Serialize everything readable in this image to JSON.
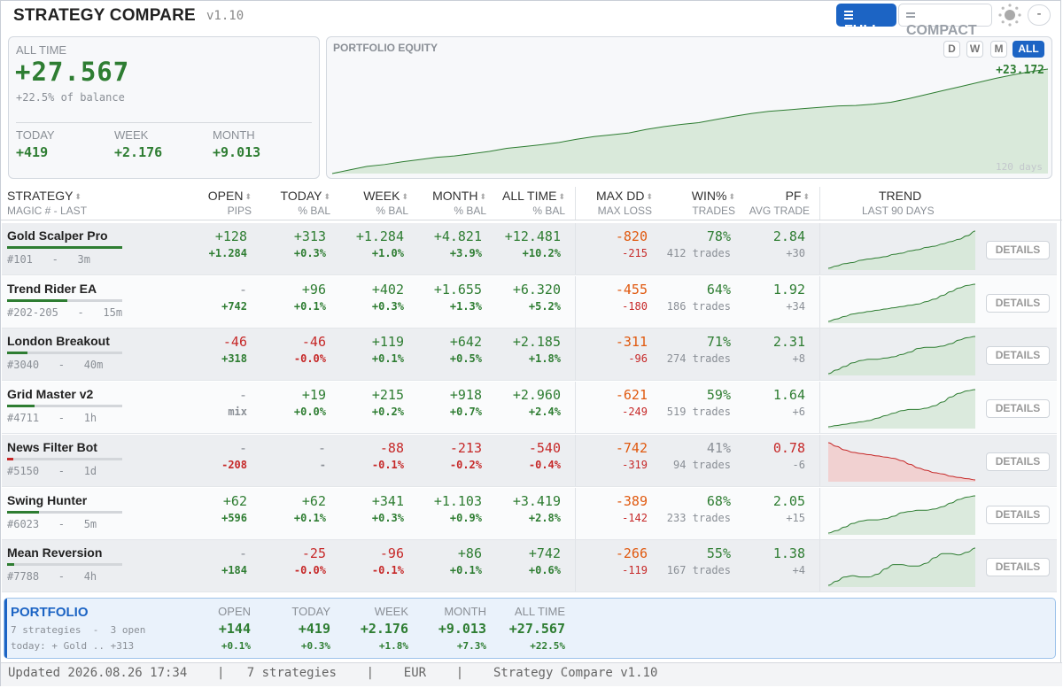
{
  "header": {
    "title": "STRATEGY COMPARE",
    "version": "v1.10",
    "view_full": "FULL",
    "view_compact": "COMPACT",
    "minimize": "-"
  },
  "summary": {
    "label": "ALL TIME",
    "value": "+27.567",
    "sub": "+22.5% of balance",
    "today_label": "TODAY",
    "today_value": "+419",
    "week_label": "WEEK",
    "week_value": "+2.176",
    "month_label": "MONTH",
    "month_value": "+9.013"
  },
  "equity": {
    "title": "PORTFOLIO EQUITY",
    "ranges": [
      "D",
      "W",
      "M",
      "ALL"
    ],
    "active_range": "ALL",
    "end_value": "+23.172",
    "period": "120 days",
    "points": [
      0,
      0.8,
      1.6,
      2.0,
      2.6,
      3.1,
      3.6,
      3.9,
      4.4,
      4.9,
      5.6,
      6.0,
      6.4,
      6.9,
      7.6,
      8.2,
      8.6,
      9.0,
      9.8,
      10.4,
      10.9,
      11.3,
      12.0,
      12.7,
      13.3,
      13.8,
      14.1,
      14.4,
      14.7,
      15.0,
      15.1,
      15.4,
      15.8,
      16.6,
      17.5,
      18.4,
      19.3,
      20.2,
      21.1,
      21.9,
      22.6,
      23.17
    ],
    "color": "#2e7d32"
  },
  "columns": {
    "strategy": "STRATEGY",
    "strategy_sub": "MAGIC # - LAST",
    "open": "OPEN",
    "open_sub": "PIPS",
    "today": "TODAY",
    "today_sub": "% BAL",
    "week": "WEEK",
    "week_sub": "% BAL",
    "month": "MONTH",
    "month_sub": "% BAL",
    "alltime": "ALL TIME",
    "alltime_sub": "% BAL",
    "maxdd": "MAX DD",
    "maxdd_sub": "MAX LOSS",
    "win": "WIN%",
    "win_sub": "TRADES",
    "pf": "PF",
    "pf_sub": "AVG TRADE",
    "trend": "TREND",
    "trend_sub": "LAST 90 DAYS"
  },
  "rows": [
    {
      "name": "Gold Scalper Pro",
      "magic": "#101   -   3m",
      "bar": 1.0,
      "open": "+128",
      "open2": "+1.284",
      "today": "+313",
      "today2": "+0.3%",
      "week": "+1.284",
      "week2": "+1.0%",
      "month": "+4.821",
      "month2": "+3.9%",
      "all": "+12.481",
      "all2": "+10.2%",
      "dd": "-820",
      "dd2": "-215",
      "win": "78%",
      "trades": "412 trades",
      "pf": "2.84",
      "avg": "+30",
      "trend": "up",
      "spark": [
        0,
        2,
        4,
        5,
        7,
        8,
        9,
        10,
        12,
        13,
        15,
        16,
        18,
        19,
        21,
        23,
        25,
        28,
        32
      ],
      "details": "DETAILS"
    },
    {
      "name": "Trend Rider EA",
      "magic": "#202-205   -   15m",
      "bar": 0.52,
      "open": "-",
      "open2": "+742",
      "today": "+96",
      "today2": "+0.1%",
      "week": "+402",
      "week2": "+0.3%",
      "month": "+1.655",
      "month2": "+1.3%",
      "all": "+6.320",
      "all2": "+5.2%",
      "dd": "-455",
      "dd2": "-180",
      "win": "64%",
      "trades": "186 trades",
      "pf": "1.92",
      "avg": "+34",
      "trend": "up",
      "spark": [
        0,
        2,
        4,
        6,
        7,
        8,
        9,
        10,
        11,
        12,
        13,
        14,
        16,
        18,
        21,
        24,
        27,
        29,
        30
      ],
      "details": "DETAILS"
    },
    {
      "name": "London Breakout",
      "magic": "#3040   -   40m",
      "bar": 0.18,
      "open": "-46",
      "open2": "+318",
      "today": "-46",
      "today2": "-0.0%",
      "week": "+119",
      "week2": "+0.1%",
      "month": "+642",
      "month2": "+0.5%",
      "all": "+2.185",
      "all2": "+1.8%",
      "dd": "-311",
      "dd2": "-96",
      "win": "71%",
      "trades": "274 trades",
      "pf": "2.31",
      "avg": "+8",
      "trend": "up",
      "spark": [
        0,
        3,
        6,
        9,
        11,
        12,
        12,
        13,
        14,
        16,
        18,
        21,
        22,
        22,
        23,
        25,
        28,
        30,
        31
      ],
      "details": "DETAILS"
    },
    {
      "name": "Grid Master v2",
      "magic": "#4711   -   1h",
      "bar": 0.24,
      "open": "-",
      "open2": "mix",
      "today": "+19",
      "today2": "+0.0%",
      "week": "+215",
      "week2": "+0.2%",
      "month": "+918",
      "month2": "+0.7%",
      "all": "+2.960",
      "all2": "+2.4%",
      "dd": "-621",
      "dd2": "-249",
      "win": "59%",
      "trades": "519 trades",
      "pf": "1.64",
      "avg": "+6",
      "trend": "up",
      "spark": [
        0,
        1,
        2,
        3,
        4,
        5,
        7,
        9,
        11,
        13,
        14,
        14,
        15,
        17,
        20,
        24,
        27,
        29,
        30
      ],
      "details": "DETAILS"
    },
    {
      "name": "News Filter Bot",
      "magic": "#5150   -   1d",
      "bar": 0.05,
      "open": "-",
      "open2": "-208",
      "today": "-",
      "today2": "-",
      "week": "-88",
      "week2": "-0.1%",
      "month": "-213",
      "month2": "-0.2%",
      "all": "-540",
      "all2": "-0.4%",
      "dd": "-742",
      "dd2": "-319",
      "win": "41%",
      "trades": "94 trades",
      "pf": "0.78",
      "avg": "-6",
      "trend": "down",
      "spark": [
        31,
        28,
        25,
        23,
        22,
        21,
        20,
        19,
        18,
        16,
        13,
        10,
        8,
        6,
        5,
        3,
        2,
        1,
        0
      ],
      "details": "DETAILS"
    },
    {
      "name": "Swing Hunter",
      "magic": "#6023   -   5m",
      "bar": 0.28,
      "open": "+62",
      "open2": "+596",
      "today": "+62",
      "today2": "+0.1%",
      "week": "+341",
      "week2": "+0.3%",
      "month": "+1.103",
      "month2": "+0.9%",
      "all": "+3.419",
      "all2": "+2.8%",
      "dd": "-389",
      "dd2": "-142",
      "win": "68%",
      "trades": "233 trades",
      "pf": "2.05",
      "avg": "+15",
      "trend": "up",
      "spark": [
        0,
        2,
        5,
        8,
        10,
        11,
        11,
        12,
        14,
        17,
        18,
        19,
        19,
        20,
        22,
        25,
        28,
        30,
        31
      ],
      "details": "DETAILS"
    },
    {
      "name": "Mean Reversion",
      "magic": "#7788   -   4h",
      "bar": 0.06,
      "open": "-",
      "open2": "+184",
      "today": "-25",
      "today2": "-0.0%",
      "week": "-96",
      "week2": "-0.1%",
      "month": "+86",
      "month2": "+0.1%",
      "all": "+742",
      "all2": "+0.6%",
      "dd": "-266",
      "dd2": "-119",
      "win": "55%",
      "trades": "167 trades",
      "pf": "1.38",
      "avg": "+4",
      "trend": "up",
      "spark": [
        0,
        3,
        6,
        7,
        6,
        6,
        8,
        12,
        15,
        15,
        14,
        14,
        16,
        20,
        23,
        23,
        22,
        24,
        27
      ],
      "details": "DETAILS"
    }
  ],
  "portfolio": {
    "title": "PORTFOLIO",
    "line1": "7 strategies  -  3 open",
    "line2": "today: + Gold .. +313",
    "open_label": "OPEN",
    "open_value": "+144",
    "open_pct": "+0.1%",
    "today_label": "TODAY",
    "today_value": "+419",
    "today_pct": "+0.3%",
    "week_label": "WEEK",
    "week_value": "+2.176",
    "week_pct": "+1.8%",
    "month_label": "MONTH",
    "month_value": "+9.013",
    "month_pct": "+7.3%",
    "all_label": "ALL TIME",
    "all_value": "+27.567",
    "all_pct": "+22.5%"
  },
  "status": {
    "updated": "Updated 2026.08.26 17:34",
    "strategies": "7 strategies",
    "currency": "EUR",
    "app": "Strategy Compare v1.10",
    "sep": "|"
  }
}
